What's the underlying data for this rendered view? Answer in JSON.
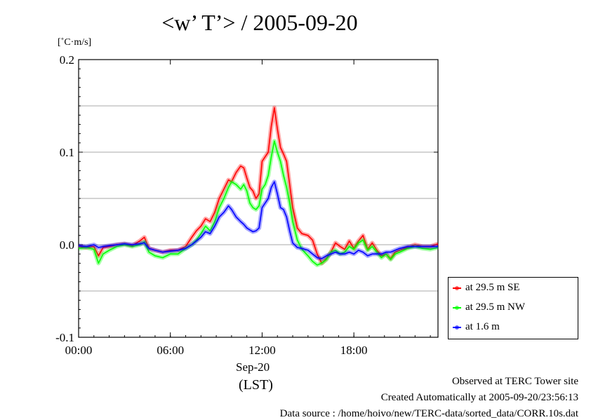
{
  "title": "<w’ T’> / 2005-09-20",
  "unit_label": "[˚C·m/s]",
  "x_sublabel": "Sep-20",
  "x_sublabel2": "(LST)",
  "footer": {
    "line1": "Observed at TERC Tower site",
    "line2": "Created Automatically at 2005-09-20/23:56:13",
    "line3": "Data source : /home/hoivo/new/TERC-data/sorted_data/CORR.10s.dat"
  },
  "colors": {
    "se": "#ff0000",
    "nw": "#00ff00",
    "low": "#0000ff"
  },
  "chart_data": {
    "type": "line",
    "title": "<w’ T’> / 2005-09-20",
    "ylabel": "[˚C·m/s]",
    "xlabel": "Sep-20 (LST)",
    "xlim": [
      0,
      23.5
    ],
    "ylim": [
      -0.1,
      0.2
    ],
    "yticks": [
      -0.1,
      0.0,
      0.1,
      0.2
    ],
    "ytick_labels": [
      "-0.1",
      "0.0",
      "0.1",
      "0.2"
    ],
    "xticks": [
      0,
      6,
      12,
      18
    ],
    "xtick_labels": [
      "00:00",
      "06:00",
      "12:00",
      "18:00"
    ],
    "grid": true,
    "legend_position": "right",
    "series": [
      {
        "name": "at 29.5 m SE",
        "color": "#ff0000",
        "points": [
          [
            0,
            -0.002
          ],
          [
            0.5,
            -0.003
          ],
          [
            1,
            -0.002
          ],
          [
            1.3,
            -0.012
          ],
          [
            1.6,
            -0.003
          ],
          [
            2,
            -0.002
          ],
          [
            2.5,
            0
          ],
          [
            3,
            0.001
          ],
          [
            3.5,
            -0.001
          ],
          [
            4,
            0.004
          ],
          [
            4.3,
            0.008
          ],
          [
            4.6,
            -0.004
          ],
          [
            5,
            -0.006
          ],
          [
            5.5,
            -0.008
          ],
          [
            6,
            -0.006
          ],
          [
            6.5,
            -0.006
          ],
          [
            7,
            -0.002
          ],
          [
            7.4,
            0.008
          ],
          [
            7.7,
            0.015
          ],
          [
            8,
            0.02
          ],
          [
            8.3,
            0.028
          ],
          [
            8.6,
            0.025
          ],
          [
            8.9,
            0.035
          ],
          [
            9.2,
            0.05
          ],
          [
            9.5,
            0.06
          ],
          [
            9.8,
            0.07
          ],
          [
            10,
            0.068
          ],
          [
            10.3,
            0.078
          ],
          [
            10.6,
            0.085
          ],
          [
            10.8,
            0.083
          ],
          [
            11,
            0.072
          ],
          [
            11.2,
            0.062
          ],
          [
            11.4,
            0.058
          ],
          [
            11.6,
            0.05
          ],
          [
            11.8,
            0.055
          ],
          [
            12,
            0.09
          ],
          [
            12.2,
            0.095
          ],
          [
            12.4,
            0.1
          ],
          [
            12.6,
            0.128
          ],
          [
            12.8,
            0.148
          ],
          [
            13,
            0.125
          ],
          [
            13.2,
            0.105
          ],
          [
            13.4,
            0.098
          ],
          [
            13.6,
            0.09
          ],
          [
            13.8,
            0.065
          ],
          [
            14,
            0.04
          ],
          [
            14.3,
            0.018
          ],
          [
            14.6,
            0.012
          ],
          [
            15,
            0.01
          ],
          [
            15.3,
            0.005
          ],
          [
            15.6,
            -0.01
          ],
          [
            15.9,
            -0.02
          ],
          [
            16.2,
            -0.015
          ],
          [
            16.5,
            -0.008
          ],
          [
            16.8,
            0.002
          ],
          [
            17.1,
            -0.002
          ],
          [
            17.4,
            -0.005
          ],
          [
            17.7,
            0.004
          ],
          [
            18,
            -0.004
          ],
          [
            18.3,
            0.004
          ],
          [
            18.6,
            0.01
          ],
          [
            18.9,
            -0.005
          ],
          [
            19.2,
            0.002
          ],
          [
            19.5,
            -0.006
          ],
          [
            19.8,
            -0.012
          ],
          [
            20.1,
            -0.01
          ],
          [
            20.4,
            -0.015
          ],
          [
            20.7,
            -0.008
          ],
          [
            21,
            -0.006
          ],
          [
            21.5,
            -0.003
          ],
          [
            22,
            0
          ],
          [
            22.5,
            -0.002
          ],
          [
            23,
            -0.002
          ],
          [
            23.5,
            0.001
          ]
        ]
      },
      {
        "name": "at 29.5 m NW",
        "color": "#00ff00",
        "points": [
          [
            0,
            -0.004
          ],
          [
            0.5,
            -0.003
          ],
          [
            1,
            -0.005
          ],
          [
            1.3,
            -0.02
          ],
          [
            1.6,
            -0.01
          ],
          [
            2,
            -0.006
          ],
          [
            2.5,
            -0.002
          ],
          [
            3,
            0
          ],
          [
            3.5,
            -0.002
          ],
          [
            4,
            0
          ],
          [
            4.3,
            0.003
          ],
          [
            4.6,
            -0.008
          ],
          [
            5,
            -0.012
          ],
          [
            5.5,
            -0.014
          ],
          [
            6,
            -0.01
          ],
          [
            6.5,
            -0.01
          ],
          [
            7,
            -0.004
          ],
          [
            7.4,
            0
          ],
          [
            7.7,
            0.005
          ],
          [
            8,
            0.012
          ],
          [
            8.3,
            0.02
          ],
          [
            8.6,
            0.015
          ],
          [
            8.9,
            0.025
          ],
          [
            9.2,
            0.04
          ],
          [
            9.5,
            0.05
          ],
          [
            9.8,
            0.062
          ],
          [
            10,
            0.068
          ],
          [
            10.3,
            0.065
          ],
          [
            10.6,
            0.06
          ],
          [
            10.8,
            0.065
          ],
          [
            11,
            0.058
          ],
          [
            11.2,
            0.045
          ],
          [
            11.4,
            0.04
          ],
          [
            11.6,
            0.038
          ],
          [
            11.8,
            0.042
          ],
          [
            12,
            0.06
          ],
          [
            12.2,
            0.065
          ],
          [
            12.4,
            0.075
          ],
          [
            12.6,
            0.095
          ],
          [
            12.8,
            0.112
          ],
          [
            13,
            0.1
          ],
          [
            13.2,
            0.09
          ],
          [
            13.4,
            0.075
          ],
          [
            13.6,
            0.062
          ],
          [
            13.8,
            0.045
          ],
          [
            14,
            0.025
          ],
          [
            14.3,
            0.005
          ],
          [
            14.6,
            -0.005
          ],
          [
            15,
            -0.012
          ],
          [
            15.3,
            -0.018
          ],
          [
            15.6,
            -0.022
          ],
          [
            15.9,
            -0.02
          ],
          [
            16.2,
            -0.016
          ],
          [
            16.5,
            -0.008
          ],
          [
            16.8,
            -0.006
          ],
          [
            17.1,
            -0.01
          ],
          [
            17.4,
            -0.008
          ],
          [
            17.7,
            -0.002
          ],
          [
            18,
            -0.005
          ],
          [
            18.3,
            0.002
          ],
          [
            18.6,
            0.005
          ],
          [
            18.9,
            -0.006
          ],
          [
            19.2,
            -0.002
          ],
          [
            19.5,
            -0.008
          ],
          [
            19.8,
            -0.014
          ],
          [
            20.1,
            -0.01
          ],
          [
            20.4,
            -0.016
          ],
          [
            20.7,
            -0.01
          ],
          [
            21,
            -0.008
          ],
          [
            21.5,
            -0.004
          ],
          [
            22,
            -0.002
          ],
          [
            22.5,
            -0.004
          ],
          [
            23,
            -0.005
          ],
          [
            23.5,
            -0.003
          ]
        ]
      },
      {
        "name": "at 1.6 m",
        "color": "#0000ff",
        "points": [
          [
            0,
            -0.001
          ],
          [
            0.5,
            -0.002
          ],
          [
            1,
            0
          ],
          [
            1.3,
            -0.003
          ],
          [
            1.6,
            -0.002
          ],
          [
            2,
            -0.001
          ],
          [
            2.5,
            0
          ],
          [
            3,
            0.001
          ],
          [
            3.5,
            0
          ],
          [
            4,
            0.001
          ],
          [
            4.3,
            0.002
          ],
          [
            4.6,
            -0.004
          ],
          [
            5,
            -0.006
          ],
          [
            5.5,
            -0.008
          ],
          [
            6,
            -0.007
          ],
          [
            6.5,
            -0.006
          ],
          [
            7,
            -0.004
          ],
          [
            7.4,
            0
          ],
          [
            7.7,
            0.004
          ],
          [
            8,
            0.008
          ],
          [
            8.3,
            0.014
          ],
          [
            8.6,
            0.012
          ],
          [
            8.9,
            0.02
          ],
          [
            9.2,
            0.03
          ],
          [
            9.5,
            0.035
          ],
          [
            9.8,
            0.042
          ],
          [
            10,
            0.038
          ],
          [
            10.3,
            0.03
          ],
          [
            10.6,
            0.025
          ],
          [
            10.8,
            0.022
          ],
          [
            11,
            0.018
          ],
          [
            11.2,
            0.016
          ],
          [
            11.4,
            0.014
          ],
          [
            11.6,
            0.015
          ],
          [
            11.8,
            0.018
          ],
          [
            12,
            0.04
          ],
          [
            12.2,
            0.045
          ],
          [
            12.4,
            0.05
          ],
          [
            12.6,
            0.062
          ],
          [
            12.8,
            0.068
          ],
          [
            13,
            0.055
          ],
          [
            13.2,
            0.04
          ],
          [
            13.4,
            0.038
          ],
          [
            13.6,
            0.03
          ],
          [
            13.8,
            0.015
          ],
          [
            14,
            0.002
          ],
          [
            14.3,
            -0.003
          ],
          [
            14.6,
            -0.004
          ],
          [
            15,
            -0.006
          ],
          [
            15.3,
            -0.01
          ],
          [
            15.6,
            -0.014
          ],
          [
            15.9,
            -0.015
          ],
          [
            16.2,
            -0.012
          ],
          [
            16.5,
            -0.01
          ],
          [
            16.8,
            -0.008
          ],
          [
            17.1,
            -0.01
          ],
          [
            17.4,
            -0.01
          ],
          [
            17.7,
            -0.008
          ],
          [
            18,
            -0.01
          ],
          [
            18.3,
            -0.006
          ],
          [
            18.6,
            -0.008
          ],
          [
            18.9,
            -0.012
          ],
          [
            19.2,
            -0.01
          ],
          [
            19.5,
            -0.01
          ],
          [
            19.8,
            -0.01
          ],
          [
            20.1,
            -0.008
          ],
          [
            20.4,
            -0.008
          ],
          [
            20.7,
            -0.006
          ],
          [
            21,
            -0.004
          ],
          [
            21.5,
            -0.002
          ],
          [
            22,
            -0.002
          ],
          [
            22.5,
            -0.002
          ],
          [
            23,
            -0.002
          ],
          [
            23.5,
            -0.002
          ]
        ]
      }
    ]
  }
}
